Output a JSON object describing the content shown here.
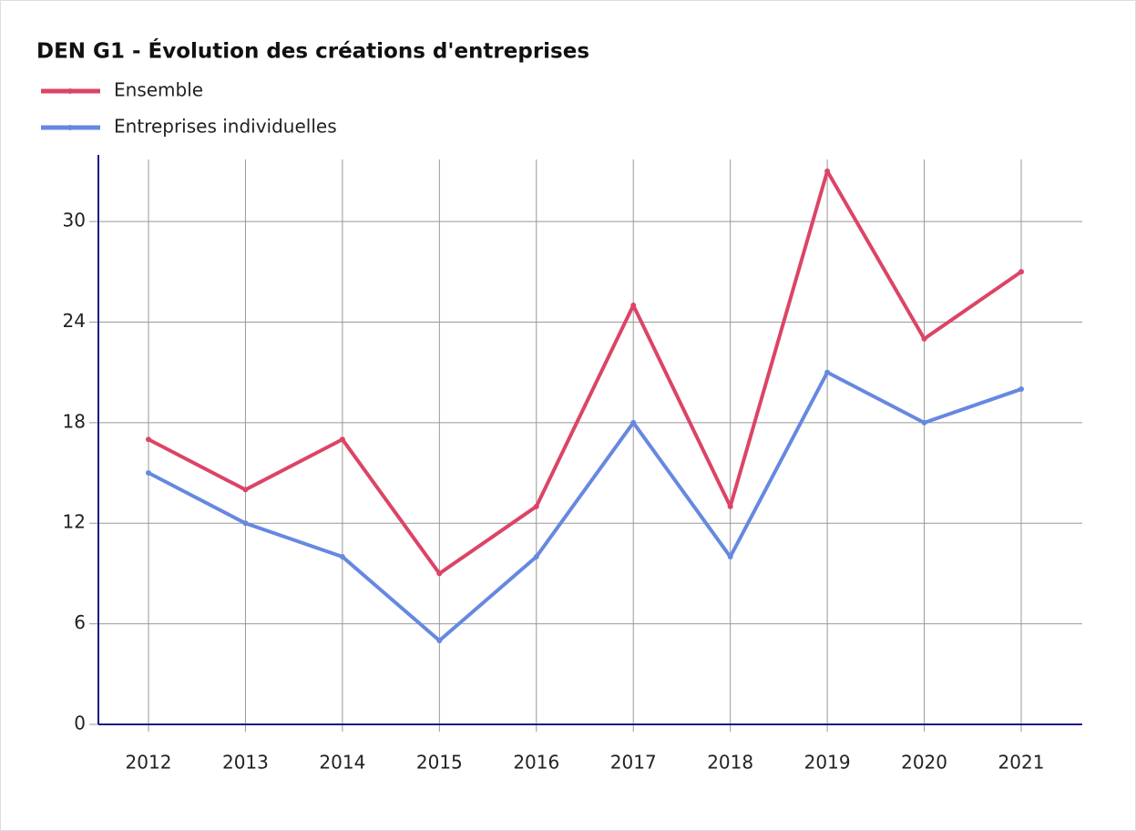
{
  "chart_data": {
    "type": "line",
    "title": "DEN G1 - Évolution des créations d'entreprises",
    "categories": [
      "2012",
      "2013",
      "2014",
      "2015",
      "2016",
      "2017",
      "2018",
      "2019",
      "2020",
      "2021"
    ],
    "series": [
      {
        "name": "Ensemble",
        "color": "#dc4466",
        "values": [
          17,
          14,
          17,
          9,
          13,
          25,
          13,
          33,
          23,
          27
        ]
      },
      {
        "name": "Entreprises individuelles",
        "color": "#6688e0",
        "values": [
          15,
          12,
          10,
          5,
          10,
          18,
          10,
          21,
          18,
          20
        ]
      }
    ],
    "ylim": [
      0,
      33.7
    ],
    "yticks": [
      0,
      6,
      12,
      18,
      24,
      30
    ],
    "grid": true
  }
}
